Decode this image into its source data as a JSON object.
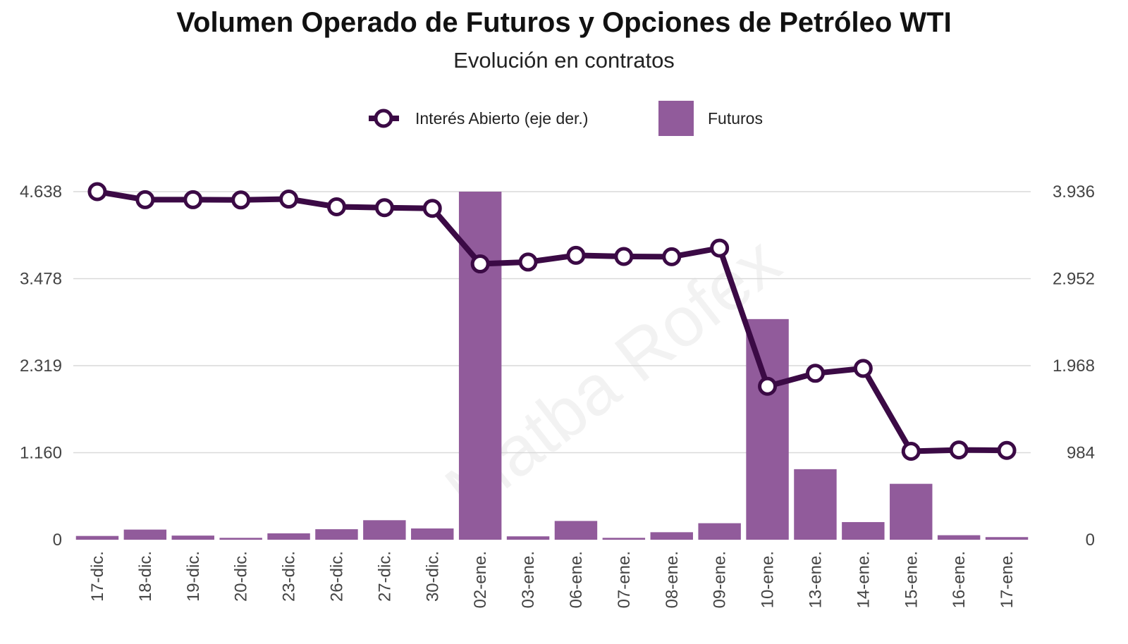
{
  "chart_data": {
    "type": "bar+line",
    "title": "Volumen Operado de Futuros y Opciones de Petróleo WTI",
    "subtitle": "Evolución en contratos",
    "watermark": "Matba Rofex",
    "categories": [
      "17-dic.",
      "18-dic.",
      "19-dic.",
      "20-dic.",
      "23-dic.",
      "26-dic.",
      "27-dic.",
      "30-dic.",
      "02-ene.",
      "03-ene.",
      "06-ene.",
      "07-ene.",
      "08-ene.",
      "09-ene.",
      "10-ene.",
      "13-ene.",
      "14-ene.",
      "15-ene.",
      "16-ene.",
      "17-ene."
    ],
    "series": [
      {
        "name": "Futuros",
        "type": "bar",
        "axis": "left",
        "color": "#915b9b",
        "values": [
          50,
          135,
          55,
          25,
          85,
          140,
          260,
          150,
          4638,
          45,
          250,
          25,
          100,
          220,
          2940,
          940,
          235,
          745,
          60,
          35
        ]
      },
      {
        "name": "Interés Abierto (eje der.)",
        "type": "line",
        "axis": "right",
        "color": "#3b0a45",
        "values": [
          3936,
          3845,
          3845,
          3842,
          3852,
          3765,
          3755,
          3747,
          3119,
          3140,
          3216,
          3203,
          3200,
          3298,
          1735,
          1882,
          1937,
          1000,
          1015,
          1010
        ]
      }
    ],
    "y_left": {
      "min": 0,
      "max": 4638,
      "ticks": [
        0,
        1160,
        2319,
        3478,
        4638
      ],
      "tick_labels": [
        "0",
        "1.160",
        "2.319",
        "3.478",
        "4.638"
      ]
    },
    "y_right": {
      "min": 0,
      "max": 3936,
      "ticks": [
        0,
        984,
        1968,
        2952,
        3936
      ],
      "tick_labels": [
        "0",
        "984",
        "1.968",
        "2.952",
        "3.936"
      ]
    },
    "grid": true,
    "legend_position": "top"
  }
}
